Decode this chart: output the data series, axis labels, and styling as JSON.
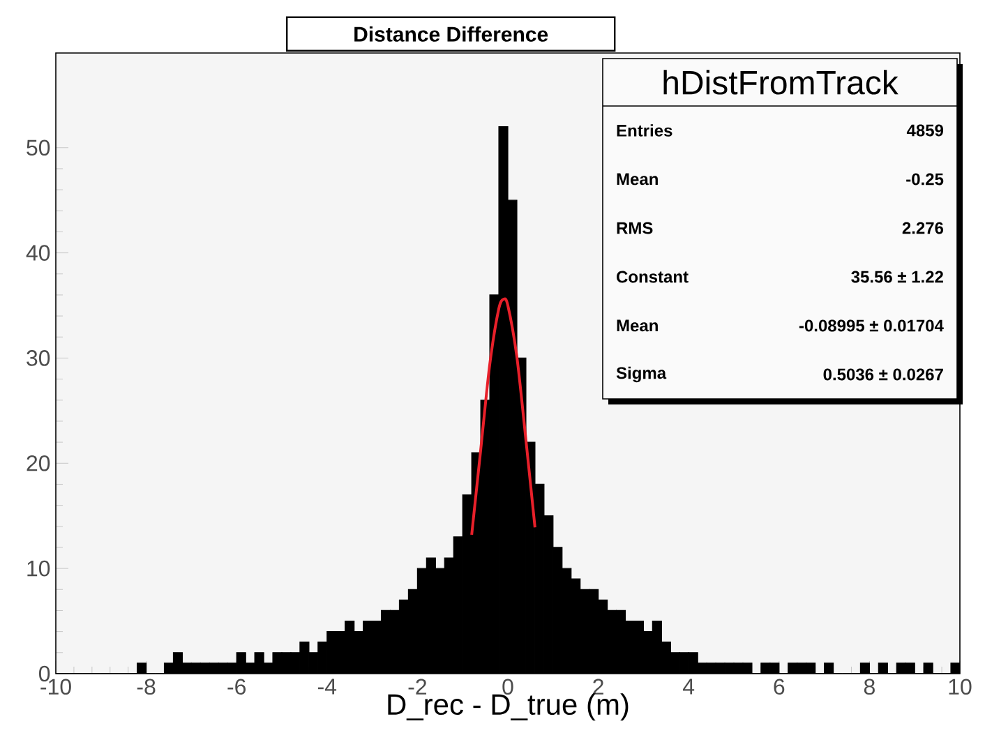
{
  "chart_data": {
    "type": "histogram",
    "title": "Distance Difference",
    "xlabel": "D_rec - D_true (m)",
    "series": [
      {
        "color": "#000000",
        "bins": [
          -10,
          -9.8,
          -9.6,
          -9.4,
          -9.2,
          -9,
          -8.8,
          -8.6,
          -8.4,
          -8.2,
          -8,
          -7.8,
          -7.6,
          -7.4,
          -7.2,
          -7,
          -6.8,
          -6.6,
          -6.4,
          -6.2,
          -6,
          -5.8,
          -5.6,
          -5.4,
          -5.2,
          -5,
          -4.8,
          -4.6,
          -4.4,
          -4.2,
          -4,
          -3.8,
          -3.6,
          -3.4,
          -3.2,
          -3,
          -2.8,
          -2.6,
          -2.4,
          -2.2,
          -2,
          -1.8,
          -1.6,
          -1.4,
          -1.2,
          -1,
          -0.8,
          -0.6,
          -0.4,
          -0.2,
          0,
          0.2,
          0.4,
          0.6,
          0.8,
          1,
          1.2,
          1.4,
          1.6,
          1.8,
          2,
          2.2,
          2.4,
          2.6,
          2.8,
          3,
          3.2,
          3.4,
          3.6,
          3.8,
          4,
          4.2,
          4.4,
          4.6,
          4.8,
          5,
          5.2,
          5.4,
          5.6,
          5.8,
          6,
          6.2,
          6.4,
          6.6,
          6.8,
          7,
          7.2,
          7.4,
          7.6,
          7.8,
          8,
          8.2,
          8.4,
          8.6,
          8.8,
          9,
          9.2,
          9.4,
          9.6,
          9.8,
          10
        ],
        "values": [
          0,
          0,
          0,
          0,
          0,
          0,
          0,
          0,
          0,
          1,
          0,
          0,
          1,
          2,
          1,
          1,
          1,
          1,
          1,
          1,
          2,
          1,
          2,
          1,
          2,
          2,
          2,
          3,
          2,
          3,
          4,
          4,
          5,
          4,
          5,
          5,
          6,
          6,
          7,
          8,
          10,
          11,
          10,
          11,
          13,
          17,
          21,
          26,
          36,
          52,
          45,
          30,
          22,
          18,
          15,
          12,
          10,
          9,
          8,
          8,
          7,
          6,
          6,
          5,
          5,
          4,
          5,
          3,
          2,
          2,
          2,
          1,
          1,
          1,
          1,
          1,
          1,
          0,
          1,
          1,
          0,
          1,
          1,
          1,
          0,
          1,
          0,
          0,
          0,
          1,
          0,
          1,
          0,
          1,
          1,
          0,
          1,
          0,
          0,
          1
        ]
      },
      {
        "type": "line",
        "color": "#e8202a",
        "x": [
          -0.8,
          -0.6,
          -0.4,
          -0.2,
          -0.09,
          0,
          0.2,
          0.4,
          0.6
        ],
        "values": [
          13.2,
          21.3,
          29.4,
          34.7,
          35.6,
          35.0,
          30.1,
          22.2,
          13.9
        ]
      }
    ],
    "xlim": [
      -10,
      10
    ],
    "ylim": [
      0,
      59
    ],
    "xticks": [
      -10,
      -8,
      -6,
      -4,
      -2,
      0,
      2,
      4,
      6,
      8,
      10
    ],
    "yticks": [
      0,
      10,
      20,
      30,
      40,
      50
    ],
    "annotations": [
      "hDistFromTrack",
      "Entries",
      "4859",
      "Mean",
      "-0.25",
      "RMS",
      "2.276",
      "Constant",
      "35.56 ± 1.22",
      "Mean",
      "-0.08995 ± 0.01704",
      "Sigma",
      "0.5036 ± 0.0267"
    ],
    "grid": false
  }
}
